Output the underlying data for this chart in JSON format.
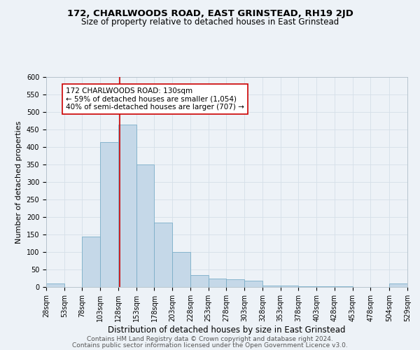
{
  "title": "172, CHARLWOODS ROAD, EAST GRINSTEAD, RH19 2JD",
  "subtitle": "Size of property relative to detached houses in East Grinstead",
  "xlabel": "Distribution of detached houses by size in East Grinstead",
  "ylabel": "Number of detached properties",
  "footnote1": "Contains HM Land Registry data © Crown copyright and database right 2024.",
  "footnote2": "Contains public sector information licensed under the Open Government Licence v3.0.",
  "annotation_line1": "172 CHARLWOODS ROAD: 130sqm",
  "annotation_line2": "← 59% of detached houses are smaller (1,054)",
  "annotation_line3": "40% of semi-detached houses are larger (707) →",
  "property_size": 130,
  "bar_edges": [
    28,
    53,
    78,
    103,
    128,
    153,
    178,
    203,
    228,
    253,
    278,
    303,
    328,
    353,
    378,
    403,
    428,
    453,
    478,
    504,
    529
  ],
  "bar_heights": [
    10,
    0,
    145,
    415,
    465,
    350,
    185,
    100,
    35,
    25,
    22,
    18,
    5,
    5,
    3,
    3,
    2,
    0,
    0,
    10
  ],
  "bar_color": "#c5d8e8",
  "bar_edge_color": "#7aaec8",
  "vline_color": "#cc0000",
  "vline_x": 130,
  "ylim": [
    0,
    600
  ],
  "yticks": [
    0,
    50,
    100,
    150,
    200,
    250,
    300,
    350,
    400,
    450,
    500,
    550,
    600
  ],
  "grid_color": "#d5dfe8",
  "background_color": "#edf2f7",
  "title_fontsize": 9.5,
  "subtitle_fontsize": 8.5,
  "xlabel_fontsize": 8.5,
  "ylabel_fontsize": 8,
  "tick_fontsize": 7,
  "annotation_fontsize": 7.5,
  "footnote_fontsize": 6.5
}
